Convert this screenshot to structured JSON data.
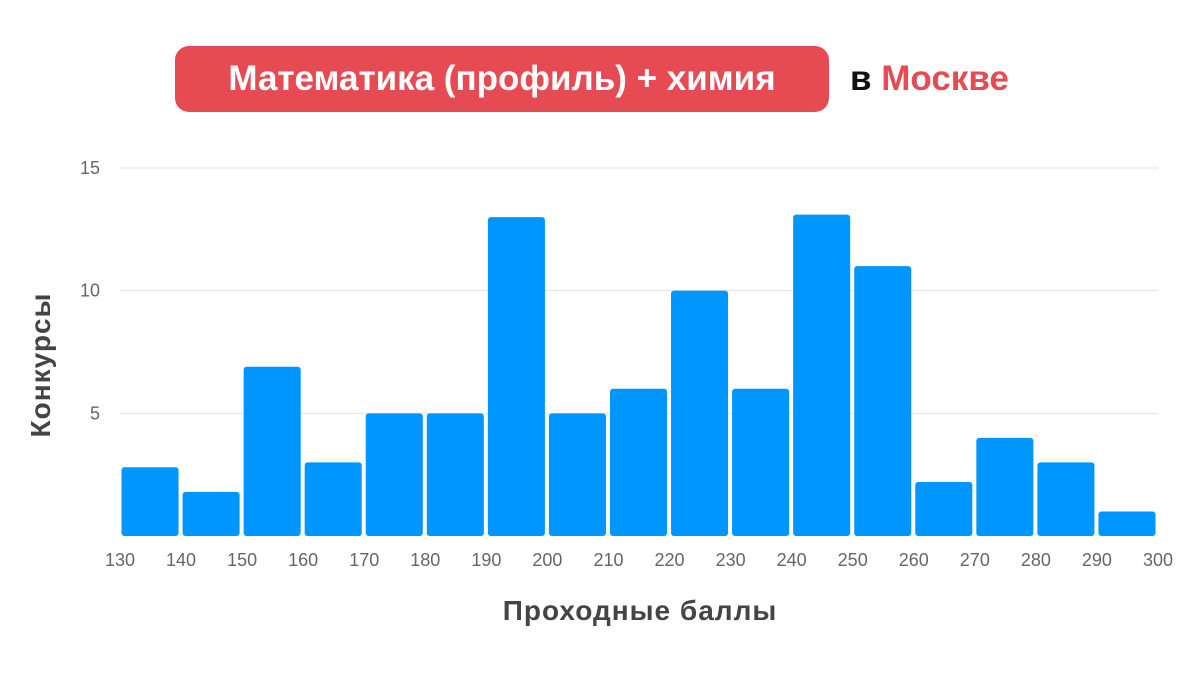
{
  "title": {
    "main": "Математика (профиль) + химия",
    "preposition": "в",
    "city": "Москве"
  },
  "colors": {
    "accent": "#e64b53",
    "bar": "#0096ff",
    "grid": "#e3e3e3"
  },
  "chart_data": {
    "type": "bar",
    "xlabel": "Проходные баллы",
    "ylabel": "Конкурсы",
    "x_ticks": [
      "130",
      "140",
      "150",
      "160",
      "170",
      "180",
      "190",
      "200",
      "210",
      "220",
      "230",
      "240",
      "250",
      "260",
      "270",
      "280",
      "290",
      "300"
    ],
    "y_ticks": [
      "5",
      "10",
      "15"
    ],
    "ylim": [
      0,
      15
    ],
    "grid": "horizontal",
    "bins": [
      {
        "from": 130,
        "to": 140,
        "value": 2.8
      },
      {
        "from": 140,
        "to": 150,
        "value": 1.8
      },
      {
        "from": 150,
        "to": 160,
        "value": 6.9
      },
      {
        "from": 160,
        "to": 170,
        "value": 3.0
      },
      {
        "from": 170,
        "to": 180,
        "value": 5.0
      },
      {
        "from": 180,
        "to": 190,
        "value": 5.0
      },
      {
        "from": 190,
        "to": 200,
        "value": 13.0
      },
      {
        "from": 200,
        "to": 210,
        "value": 5.0
      },
      {
        "from": 210,
        "to": 220,
        "value": 6.0
      },
      {
        "from": 220,
        "to": 230,
        "value": 10.0
      },
      {
        "from": 230,
        "to": 240,
        "value": 6.0
      },
      {
        "from": 240,
        "to": 250,
        "value": 13.1
      },
      {
        "from": 250,
        "to": 260,
        "value": 11.0
      },
      {
        "from": 260,
        "to": 270,
        "value": 2.2
      },
      {
        "from": 270,
        "to": 280,
        "value": 4.0
      },
      {
        "from": 280,
        "to": 290,
        "value": 3.0
      },
      {
        "from": 290,
        "to": 300,
        "value": 1.0
      }
    ]
  }
}
